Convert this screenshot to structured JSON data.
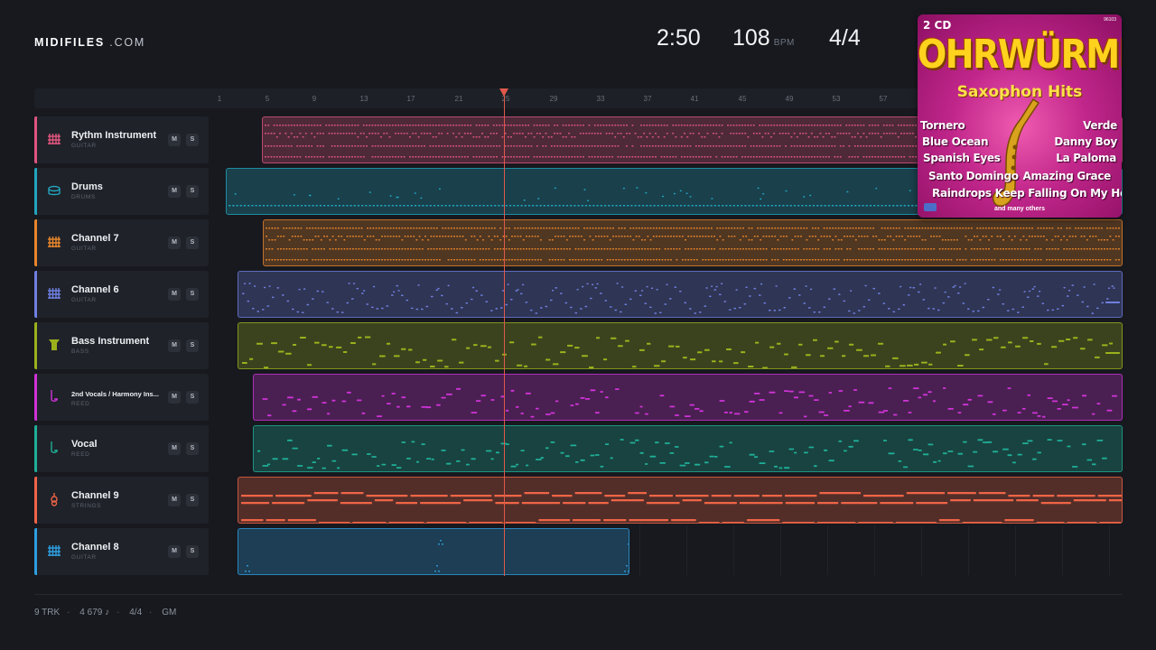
{
  "header": {
    "brand_bold": "MIDIFILES",
    "brand_light": ".COM",
    "time": "2:50",
    "bpm": "108",
    "bpm_unit": "BPM",
    "time_signature": "4/4"
  },
  "ruler": {
    "bars": [
      "1",
      "5",
      "9",
      "13",
      "17",
      "21",
      "25",
      "29",
      "33",
      "37",
      "41",
      "45",
      "49",
      "53",
      "57"
    ]
  },
  "tracks": [
    {
      "name": "Rythm Instrument",
      "sub": "GUITAR",
      "color": "#e0557f",
      "icon": "guitar-grid-icon",
      "mute": "M",
      "solo": "S"
    },
    {
      "name": "Drums",
      "sub": "DRUMS",
      "color": "#22a5bf",
      "icon": "drum-icon",
      "mute": "M",
      "solo": "S"
    },
    {
      "name": "Channel 7",
      "sub": "GUITAR",
      "color": "#e7852b",
      "icon": "guitar-grid-icon",
      "mute": "M",
      "solo": "S"
    },
    {
      "name": "Channel 6",
      "sub": "GUITAR",
      "color": "#6f7fe0",
      "icon": "guitar-grid-icon",
      "mute": "M",
      "solo": "S"
    },
    {
      "name": "Bass Instrument",
      "sub": "BASS",
      "color": "#9bb11c",
      "icon": "bass-icon",
      "mute": "M",
      "solo": "S"
    },
    {
      "name": "2nd Vocals / Harmony Ins...",
      "sub": "REED",
      "color": "#d033d8",
      "icon": "reed-icon",
      "mute": "M",
      "solo": "S"
    },
    {
      "name": "Vocal",
      "sub": "REED",
      "color": "#1faf98",
      "icon": "reed-icon",
      "mute": "M",
      "solo": "S"
    },
    {
      "name": "Channel 9",
      "sub": "STRINGS",
      "color": "#ef6446",
      "icon": "violin-icon",
      "mute": "M",
      "solo": "S"
    },
    {
      "name": "Channel 8",
      "sub": "GUITAR",
      "color": "#2d9ee0",
      "icon": "guitar-grid-icon",
      "mute": "M",
      "solo": "S"
    }
  ],
  "footer": {
    "tracks": "9 TRK",
    "notes": "4 679 ♪",
    "signature": "4/4",
    "standard": "GM"
  },
  "album": {
    "cd_label": "2 CD",
    "catalog": "96103",
    "title": "OHRWÜRMER",
    "subtitle": "Saxophon Hits",
    "songs": [
      "Tornero",
      "Verde",
      "Blue Ocean",
      "Danny Boy",
      "Spanish Eyes",
      "La Paloma",
      "Santo Domingo",
      "Amazing Grace",
      "Raindrops Keep Falling On My Head"
    ],
    "footer_text": "and many others"
  }
}
